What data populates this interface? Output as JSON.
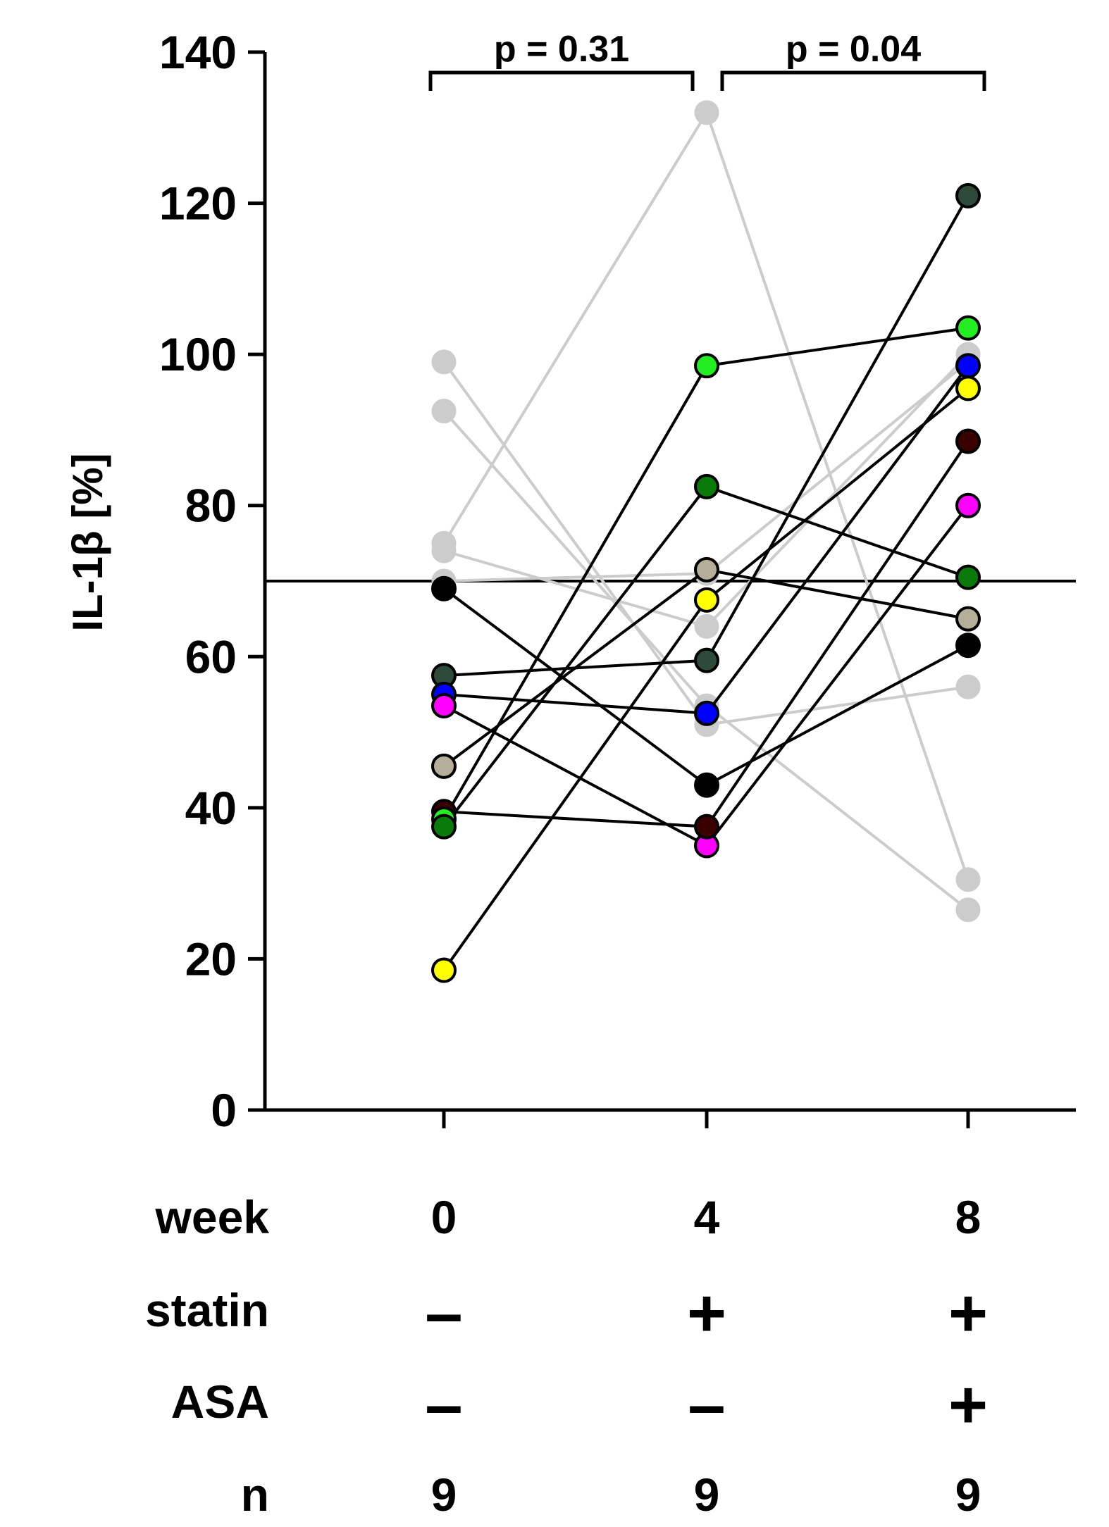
{
  "chart_data": {
    "type": "line",
    "ylabel": "IL-1β [%]",
    "ylim": [
      0,
      140
    ],
    "yticks": [
      0,
      20,
      40,
      60,
      80,
      100,
      120,
      140
    ],
    "ytick_labels": [
      "0",
      "20",
      "40",
      "60",
      "80",
      "100",
      "120",
      "140"
    ],
    "x_categories": [
      "0",
      "4",
      "8"
    ],
    "reference_line": 70,
    "comparisons": [
      {
        "from": 0,
        "to": 1,
        "label": "p = 0.31"
      },
      {
        "from": 1,
        "to": 2,
        "label": "p = 0.04"
      }
    ],
    "table": {
      "rows": [
        {
          "label": "week",
          "values": [
            "0",
            "4",
            "8"
          ],
          "kind": "text"
        },
        {
          "label": "statin",
          "values": [
            "–",
            "+",
            "+"
          ],
          "kind": "sign"
        },
        {
          "label": "ASA",
          "values": [
            "–",
            "–",
            "+"
          ],
          "kind": "sign"
        },
        {
          "label": "n",
          "values": [
            "9",
            "9",
            "9"
          ],
          "kind": "text"
        }
      ]
    },
    "series": [
      {
        "name": "gray-1",
        "group": "excluded",
        "color": "#cccccc",
        "values": [
          75,
          132,
          30.5
        ]
      },
      {
        "name": "gray-2",
        "group": "excluded",
        "color": "#cccccc",
        "values": [
          99,
          51,
          56
        ]
      },
      {
        "name": "gray-3",
        "group": "excluded",
        "color": "#cccccc",
        "values": [
          92.5,
          53.5,
          26.5
        ]
      },
      {
        "name": "gray-4",
        "group": "excluded",
        "color": "#cccccc",
        "values": [
          74,
          64,
          100
        ]
      },
      {
        "name": "gray-5",
        "group": "excluded",
        "color": "#cccccc",
        "values": [
          70,
          71,
          99
        ]
      },
      {
        "name": "black",
        "group": "included",
        "color": "#000000",
        "values": [
          69,
          43,
          61.5
        ]
      },
      {
        "name": "dark-green",
        "group": "included",
        "color": "#2e4a3a",
        "values": [
          57.5,
          59.5,
          121
        ]
      },
      {
        "name": "blue",
        "group": "included",
        "color": "#0000ff",
        "values": [
          55,
          52.5,
          98.5
        ]
      },
      {
        "name": "magenta",
        "group": "included",
        "color": "#ff00ff",
        "values": [
          53.5,
          35,
          80
        ]
      },
      {
        "name": "tan",
        "group": "included",
        "color": "#b5ae98",
        "values": [
          45.5,
          71.5,
          65
        ]
      },
      {
        "name": "maroon",
        "group": "included",
        "color": "#3a0000",
        "values": [
          39.5,
          37.5,
          88.5
        ]
      },
      {
        "name": "lime",
        "group": "included",
        "color": "#22ee22",
        "values": [
          38.5,
          98.5,
          103.5
        ]
      },
      {
        "name": "green",
        "group": "included",
        "color": "#0a7a0a",
        "values": [
          37.5,
          82.5,
          70.5
        ]
      },
      {
        "name": "yellow",
        "group": "included",
        "color": "#ffff00",
        "values": [
          18.5,
          67.5,
          95.5
        ]
      }
    ]
  }
}
